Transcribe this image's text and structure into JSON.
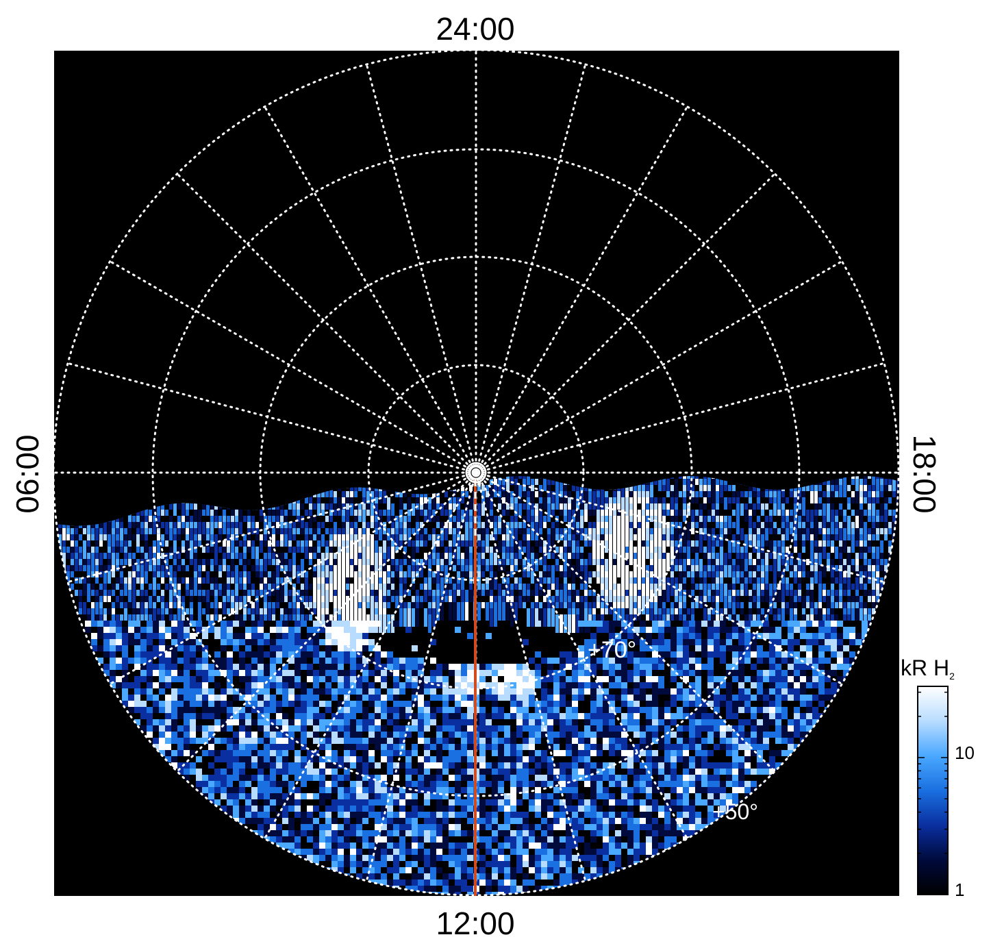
{
  "local_time_labels": {
    "top": "24:00",
    "bottom": "12:00",
    "left": "06:00",
    "right": "18:00"
  },
  "latitude_labels": [
    "+70°",
    "+50°"
  ],
  "colorbar": {
    "unit_main": "kR H",
    "unit_sub": "2",
    "tick_labels": [
      "1",
      "10"
    ],
    "scale": "log",
    "colors": [
      "#000000",
      "#000a3c",
      "#0a2fa0",
      "#1a70e0",
      "#4aa8ff",
      "#b8dcff",
      "#ffffff"
    ]
  },
  "colors": {
    "background": "#000000",
    "grid": "#ffffff",
    "meridian_line": "#d24b1e"
  }
}
